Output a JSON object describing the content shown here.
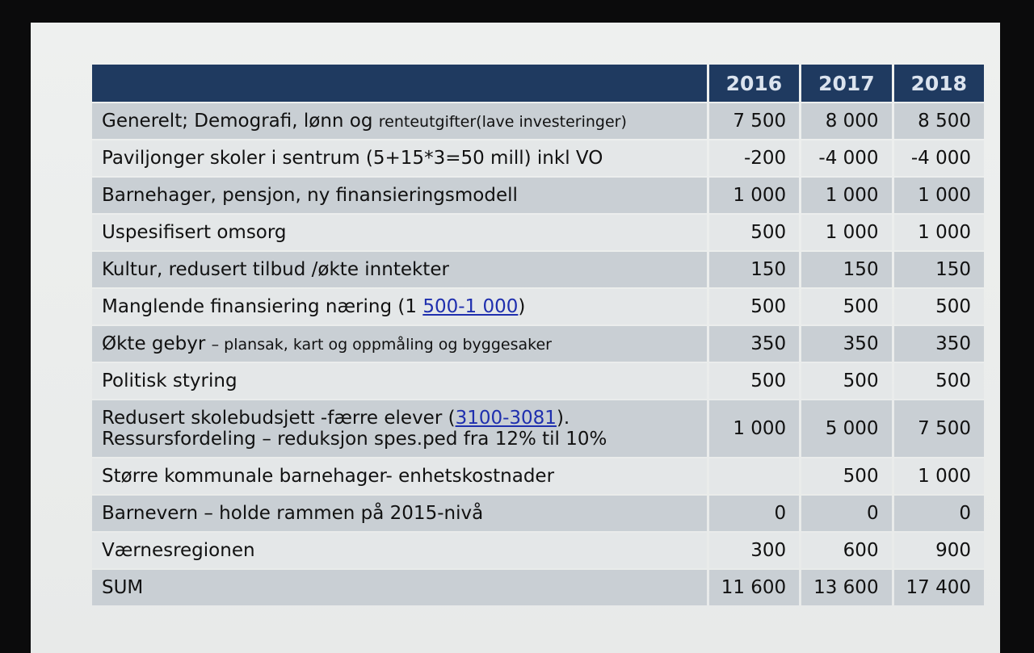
{
  "table": {
    "years": [
      "2016",
      "2017",
      "2018"
    ],
    "rows": [
      {
        "parts": [
          "Generelt; Demografi, lønn og ",
          "renteutgifter(lave investeringer)"
        ],
        "values": [
          "7 500",
          "8 000",
          "8 500"
        ]
      },
      {
        "label": "Paviljonger skoler i sentrum (5+15*3=50 mill) inkl VO",
        "values": [
          "-200",
          "-4 000",
          "-4 000"
        ]
      },
      {
        "label": "Barnehager, pensjon, ny finansieringsmodell",
        "values": [
          "1 000",
          "1 000",
          "1 000"
        ]
      },
      {
        "label": "Uspesifisert omsorg",
        "values": [
          "500",
          "1 000",
          "1 000"
        ]
      },
      {
        "label": "Kultur, redusert tilbud /økte inntekter",
        "values": [
          "150",
          "150",
          "150"
        ]
      },
      {
        "parts": [
          "Manglende finansiering næring (1 ",
          "500-1 000",
          ")"
        ],
        "values": [
          "500",
          "500",
          "500"
        ]
      },
      {
        "parts": [
          "Økte gebyr ",
          "– plansak, kart og oppmåling og byggesaker"
        ],
        "values": [
          "350",
          "350",
          "350"
        ]
      },
      {
        "label": "Politisk styring",
        "values": [
          "500",
          "500",
          "500"
        ]
      },
      {
        "parts": [
          "Redusert skolebudsjett  -færre elever (",
          "3100-3081",
          ").",
          "Ressursfordeling – reduksjon spes.ped fra 12% til 10%"
        ],
        "values": [
          "1 000",
          "5 000",
          "7 500"
        ]
      },
      {
        "label": "Større kommunale barnehager- enhetskostnader",
        "values": [
          "",
          "500",
          "1 000"
        ]
      },
      {
        "label": "Barnevern – holde rammen på 2015-nivå",
        "values": [
          "0",
          "0",
          "0"
        ]
      },
      {
        "label": "Værnesregionen",
        "values": [
          "300",
          "600",
          "900"
        ]
      },
      {
        "label": "SUM",
        "values": [
          "11 600",
          "13 600",
          "17 400"
        ]
      }
    ]
  }
}
